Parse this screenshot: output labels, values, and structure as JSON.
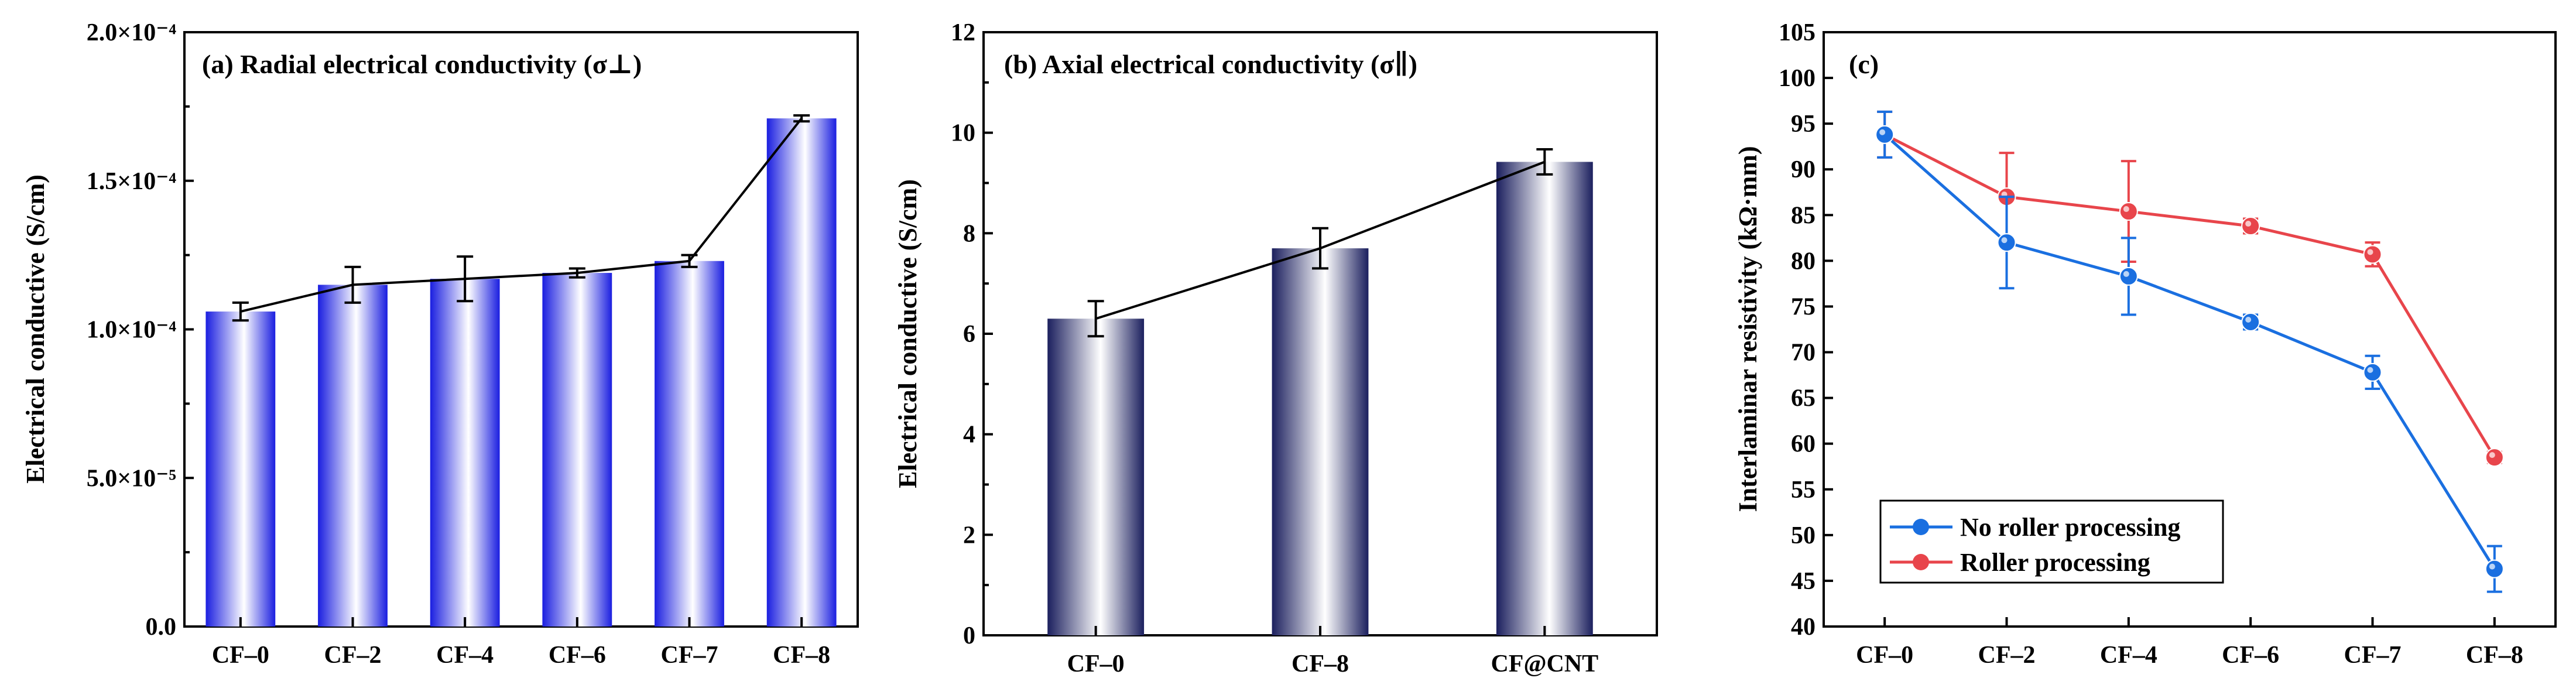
{
  "chart_data": [
    {
      "type": "bar",
      "title": "(a) Radial electrical conductivity (σ⊥)",
      "ylabel": "Electrical conductive (S/cm)",
      "xlabel": "",
      "categories": [
        "CF–0",
        "CF–2",
        "CF–4",
        "CF–6",
        "CF–7",
        "CF–8"
      ],
      "values": [
        0.000106,
        0.000115,
        0.000117,
        0.000119,
        0.000123,
        0.000171
      ],
      "errors": [
        3e-06,
        6e-06,
        7.5e-06,
        1.5e-06,
        2e-06,
        1e-06
      ],
      "ylim": [
        0,
        0.0002
      ],
      "ytick_labels": [
        "0.0",
        "5.0×10⁻⁵",
        "1.0×10⁻⁴",
        "1.5×10⁻⁴",
        "2.0×10⁻⁴"
      ],
      "connecting_line": true,
      "bar_gradient": [
        "#1a1ee0",
        "#ffffff"
      ]
    },
    {
      "type": "bar",
      "title": "(b) Axial electrical conductivity (σ∥)",
      "ylabel": "Electrical conductive (S/cm)",
      "xlabel": "",
      "categories": [
        "CF–0",
        "CF–8",
        "CF@CNT"
      ],
      "values": [
        6.3,
        7.7,
        9.42
      ],
      "errors": [
        0.35,
        0.4,
        0.25
      ],
      "ylim": [
        0,
        12
      ],
      "ytick_labels": [
        "0",
        "2",
        "4",
        "6",
        "8",
        "10",
        "12"
      ],
      "connecting_line": true,
      "bar_gradient": [
        "#1b1f5e",
        "#ffffff"
      ]
    },
    {
      "type": "line",
      "title": "(c)",
      "ylabel": "Interlaminar resistivity (kΩ·mm)",
      "xlabel": "",
      "categories": [
        "CF–0",
        "CF–2",
        "CF–4",
        "CF–6",
        "CF–7",
        "CF–8"
      ],
      "ylim": [
        40,
        105
      ],
      "ytick_labels": [
        "40",
        "45",
        "50",
        "55",
        "60",
        "65",
        "70",
        "75",
        "80",
        "85",
        "90",
        "95",
        "100",
        "105"
      ],
      "legend_position": "bottom-left",
      "series": [
        {
          "name": "No roller processing",
          "color": "#1a6fe0",
          "values": [
            93.8,
            82.0,
            78.3,
            73.3,
            67.8,
            46.3
          ],
          "errors": [
            2.5,
            5.0,
            4.2,
            0.8,
            1.8,
            2.5
          ]
        },
        {
          "name": "Roller processing",
          "color": "#e8454b",
          "values": [
            93.8,
            87.0,
            85.4,
            83.8,
            80.7,
            58.5
          ],
          "errors": [
            2.5,
            4.8,
            5.5,
            0.8,
            1.3,
            0.6
          ]
        }
      ]
    }
  ]
}
